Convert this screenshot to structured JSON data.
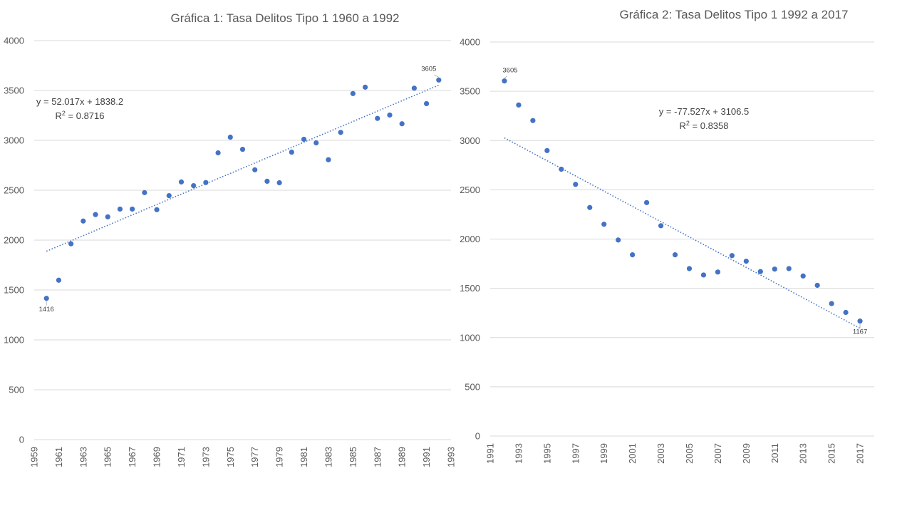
{
  "colors": {
    "marker": "#4472C4",
    "trendline": "#4472C4",
    "grid": "#d9d9d9",
    "text": "#595959"
  },
  "chart_data": [
    {
      "type": "scatter",
      "title": "Gráfica 1: Tasa Delitos Tipo 1 1960 a 1992",
      "xlim": [
        1959,
        1993
      ],
      "ylim": [
        0,
        4000
      ],
      "x_ticks": [
        "1959",
        "1961",
        "1963",
        "1965",
        "1967",
        "1969",
        "1971",
        "1973",
        "1975",
        "1977",
        "1979",
        "1981",
        "1983",
        "1985",
        "1987",
        "1989",
        "1991",
        "1993"
      ],
      "y_ticks": [
        "0",
        "500",
        "1000",
        "1500",
        "2000",
        "2500",
        "3000",
        "3500",
        "4000"
      ],
      "grid": "horizontal",
      "trendline": {
        "type": "linear",
        "equation": "y = 52.017x + 1838.2",
        "r2_prefix": "R",
        "r2_sup": "2",
        "r2_value": " = 0.8716"
      },
      "data_labels": [
        {
          "x": 1960,
          "text": "1416"
        },
        {
          "x": 1992,
          "text": "3605"
        }
      ],
      "points": [
        [
          1960,
          1416
        ],
        [
          1961,
          1598
        ],
        [
          1962,
          1963
        ],
        [
          1963,
          2191
        ],
        [
          1964,
          2256
        ],
        [
          1965,
          2233
        ],
        [
          1966,
          2311
        ],
        [
          1967,
          2311
        ],
        [
          1968,
          2476
        ],
        [
          1969,
          2305
        ],
        [
          1970,
          2446
        ],
        [
          1971,
          2583
        ],
        [
          1972,
          2546
        ],
        [
          1973,
          2577
        ],
        [
          1974,
          2875
        ],
        [
          1975,
          3032
        ],
        [
          1976,
          2910
        ],
        [
          1977,
          2705
        ],
        [
          1978,
          2590
        ],
        [
          1979,
          2575
        ],
        [
          1980,
          2882
        ],
        [
          1981,
          3011
        ],
        [
          1982,
          2975
        ],
        [
          1983,
          2806
        ],
        [
          1984,
          3080
        ],
        [
          1985,
          3469
        ],
        [
          1986,
          3533
        ],
        [
          1987,
          3220
        ],
        [
          1988,
          3254
        ],
        [
          1989,
          3166
        ],
        [
          1990,
          3523
        ],
        [
          1991,
          3368
        ],
        [
          1992,
          3605
        ]
      ]
    },
    {
      "type": "scatter",
      "title": "Gráfica 2: Tasa Delitos Tipo 1 1992 a 2017",
      "xlim": [
        1991,
        2018
      ],
      "ylim": [
        0,
        4000
      ],
      "x_ticks": [
        "1991",
        "1993",
        "1995",
        "1997",
        "1999",
        "2001",
        "2003",
        "2005",
        "2007",
        "2009",
        "2011",
        "2013",
        "2015",
        "2017"
      ],
      "y_ticks": [
        "0",
        "500",
        "1000",
        "1500",
        "2000",
        "2500",
        "3000",
        "3500",
        "4000"
      ],
      "grid": "horizontal",
      "trendline": {
        "type": "linear",
        "equation": "y = -77.527x + 3106.5",
        "r2_prefix": "R",
        "r2_sup": "2",
        "r2_value": " = 0.8358"
      },
      "data_labels": [
        {
          "x": 1992,
          "text": "3605"
        },
        {
          "x": 2017,
          "text": "1167"
        }
      ],
      "points": [
        [
          1992,
          3605
        ],
        [
          1993,
          3361
        ],
        [
          1994,
          3203
        ],
        [
          1995,
          2898
        ],
        [
          1996,
          2709
        ],
        [
          1997,
          2555
        ],
        [
          1998,
          2320
        ],
        [
          1999,
          2150
        ],
        [
          2000,
          1990
        ],
        [
          2001,
          1840
        ],
        [
          2002,
          2370
        ],
        [
          2003,
          2135
        ],
        [
          2004,
          1840
        ],
        [
          2005,
          1700
        ],
        [
          2006,
          1635
        ],
        [
          2007,
          1665
        ],
        [
          2008,
          1832
        ],
        [
          2009,
          1775
        ],
        [
          2010,
          1670
        ],
        [
          2011,
          1695
        ],
        [
          2012,
          1700
        ],
        [
          2013,
          1625
        ],
        [
          2014,
          1530
        ],
        [
          2015,
          1345
        ],
        [
          2016,
          1255
        ],
        [
          2017,
          1167
        ]
      ]
    }
  ]
}
